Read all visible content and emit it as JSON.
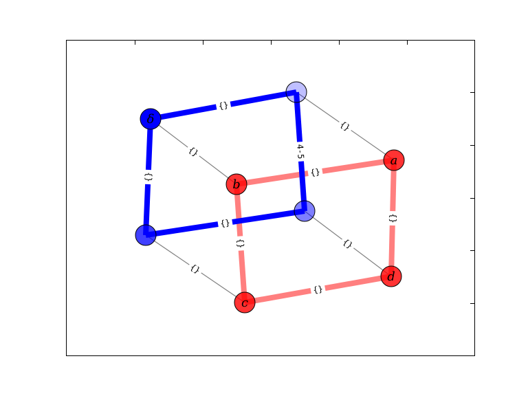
{
  "colors": {
    "red_node": "#ff0000",
    "blue_node": "#0000ff",
    "red_edge": "#ff0000",
    "blue_edge": "#0000ff",
    "thin_edge": "#808080"
  },
  "nodes": [
    {
      "id": "a",
      "label": "a",
      "color": "#ff0000",
      "alpha": 0.8
    },
    {
      "id": "b",
      "label": "b",
      "color": "#ff0000",
      "alpha": 0.8
    },
    {
      "id": "c",
      "label": "c",
      "color": "#ff0000",
      "alpha": 0.8
    },
    {
      "id": "d",
      "label": "d",
      "color": "#ff0000",
      "alpha": 0.8
    },
    {
      "id": "delta",
      "label": "δ",
      "color": "#0000ff",
      "alpha": 1.0
    },
    {
      "id": "n4",
      "label": "",
      "color": "#0000ff",
      "alpha": 0.25
    },
    {
      "id": "n5",
      "label": "",
      "color": "#0000ff",
      "alpha": 0.5
    },
    {
      "id": "n6",
      "label": "",
      "color": "#0000ff",
      "alpha": 0.75
    }
  ],
  "edges": [
    {
      "from": "a",
      "to": "b",
      "style": "red",
      "label": "{}"
    },
    {
      "from": "a",
      "to": "d",
      "style": "red",
      "label": "{}"
    },
    {
      "from": "b",
      "to": "c",
      "style": "red",
      "label": "{}"
    },
    {
      "from": "c",
      "to": "d",
      "style": "red",
      "label": "{}"
    },
    {
      "from": "delta",
      "to": "n4",
      "style": "blue",
      "label": "{}"
    },
    {
      "from": "n4",
      "to": "n5",
      "style": "blue",
      "label": "4-5"
    },
    {
      "from": "n5",
      "to": "n6",
      "style": "blue",
      "label": "{}"
    },
    {
      "from": "n6",
      "to": "delta",
      "style": "blue",
      "label": "{}"
    },
    {
      "from": "n4",
      "to": "a",
      "style": "thin",
      "label": "{}"
    },
    {
      "from": "delta",
      "to": "b",
      "style": "thin",
      "label": "{}"
    },
    {
      "from": "n5",
      "to": "d",
      "style": "thin",
      "label": "{}"
    },
    {
      "from": "n6",
      "to": "c",
      "style": "thin",
      "label": "{}"
    }
  ]
}
